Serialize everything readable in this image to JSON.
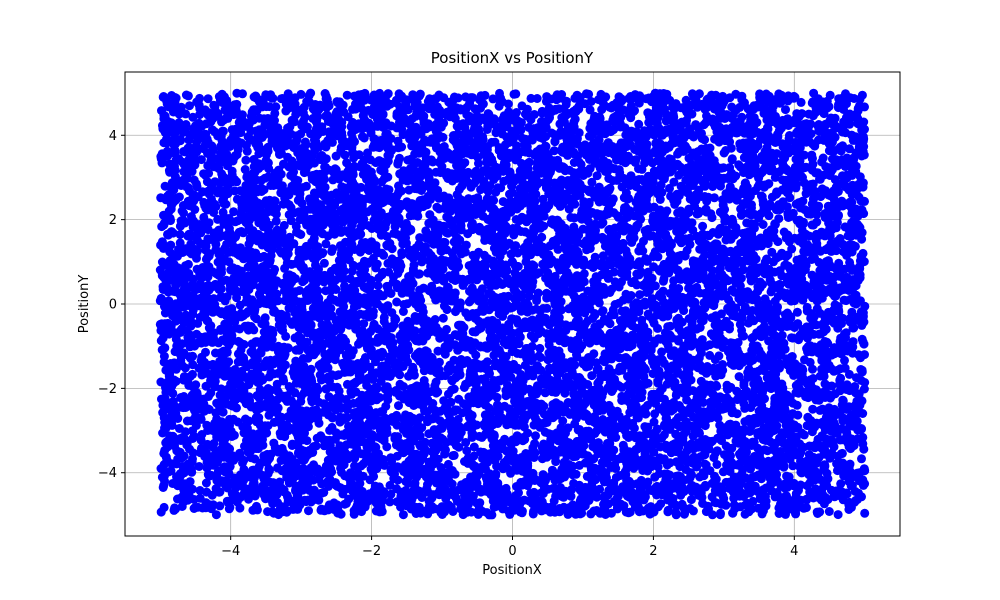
{
  "chart_data": {
    "type": "scatter",
    "title": "PositionX vs PositionY",
    "xlabel": "PositionX",
    "ylabel": "PositionY",
    "xlim": [
      -5.5,
      5.5
    ],
    "ylim": [
      -5.5,
      5.5
    ],
    "x_ticks": [
      -4,
      -2,
      0,
      2,
      4
    ],
    "x_tick_labels": [
      "−4",
      "−2",
      "0",
      "2",
      "4"
    ],
    "y_ticks": [
      -4,
      -2,
      0,
      2,
      4
    ],
    "y_tick_labels": [
      "−4",
      "−2",
      "0",
      "2",
      "4"
    ],
    "grid": true,
    "marker_color": "#0000ff",
    "points": {
      "distribution": "uniform",
      "count": 10000,
      "x_range": [
        -5,
        5
      ],
      "y_range": [
        -5,
        5
      ]
    }
  }
}
